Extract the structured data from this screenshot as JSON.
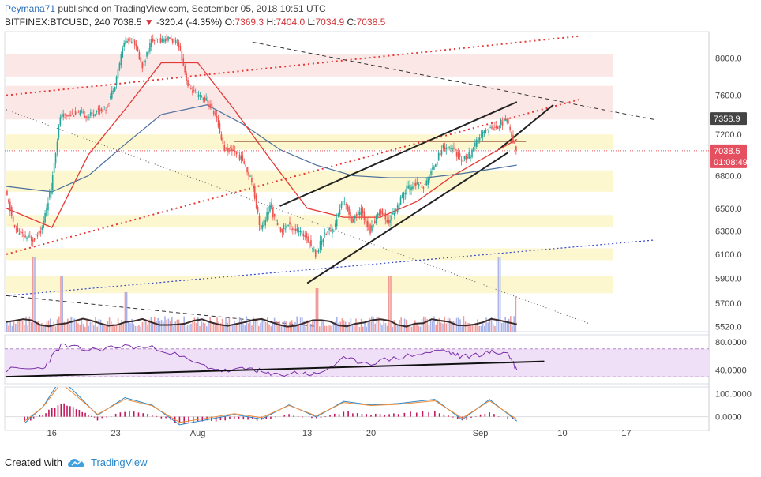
{
  "header": {
    "author": "Peymana71",
    "published": "published on TradingView.com, September 05, 2018 10:51 UTC",
    "symbol": "BITFINEX:BTCUSD, 240",
    "last": "7038.5",
    "down_arrow": "▼",
    "change": "-320.4 (-4.35%)",
    "ohlc_open_label": "O:",
    "ohlc_open": "7369.3",
    "ohlc_high_label": "H:",
    "ohlc_high": "7404.0",
    "ohlc_low_label": "L:",
    "ohlc_low": "7034.9",
    "ohlc_close_label": "C:",
    "ohlc_close": "7038.5"
  },
  "footer": {
    "created_with": "Created with",
    "brand": "TradingView",
    "logo_icon": "tradingview-cloud-icon"
  },
  "colors": {
    "candle_up": "#26a69a",
    "candle_down": "#ef5350",
    "ema_fast": "#e53935",
    "ema_slow": "#4a6f9c",
    "red_trendline": "#e53935",
    "blue_trendline": "#3345c9",
    "channel": "#222222",
    "rsi": "#7b2fa8",
    "macd_hist": "#c2185b",
    "price_tag_bg": "#e55060"
  },
  "chart_data": [
    {
      "type": "candlestick",
      "title": "BITFINEX:BTCUSD, 240",
      "x_tick_labels": [
        "16",
        "23",
        "Aug",
        "13",
        "20",
        "Sep",
        "10",
        "17"
      ],
      "y_tick_labels": [
        "8000.0",
        "7600.0",
        "7200.0",
        "6800.0",
        "6500.0",
        "6300.0",
        "6100.0",
        "5900.0",
        "5700.0",
        "5520.0"
      ],
      "y_log_scale": true,
      "ylim": [
        5480,
        8300
      ],
      "price_tags": {
        "high_tag": "7358.9",
        "last_price": "7038.5",
        "countdown": "01:08:49"
      },
      "close_path": [
        {
          "d": "Jul 11",
          "v": 6650
        },
        {
          "d": "Jul 12",
          "v": 6320
        },
        {
          "d": "Jul 13",
          "v": 6250
        },
        {
          "d": "Jul 14",
          "v": 6230
        },
        {
          "d": "Jul 15",
          "v": 6320
        },
        {
          "d": "Jul 16",
          "v": 6700
        },
        {
          "d": "Jul 17",
          "v": 7380
        },
        {
          "d": "Jul 18",
          "v": 7400
        },
        {
          "d": "Jul 19",
          "v": 7420
        },
        {
          "d": "Jul 20",
          "v": 7380
        },
        {
          "d": "Jul 21",
          "v": 7440
        },
        {
          "d": "Jul 22",
          "v": 7460
        },
        {
          "d": "Jul 23",
          "v": 7720
        },
        {
          "d": "Jul 24",
          "v": 8180
        },
        {
          "d": "Jul 25",
          "v": 8220
        },
        {
          "d": "Jul 26",
          "v": 7900
        },
        {
          "d": "Jul 27",
          "v": 8200
        },
        {
          "d": "Jul 28",
          "v": 8200
        },
        {
          "d": "Jul 29",
          "v": 8220
        },
        {
          "d": "Jul 30",
          "v": 8150
        },
        {
          "d": "Jul 31",
          "v": 7700
        },
        {
          "d": "Aug 1",
          "v": 7600
        },
        {
          "d": "Aug 2",
          "v": 7550
        },
        {
          "d": "Aug 3",
          "v": 7400
        },
        {
          "d": "Aug 4",
          "v": 7050
        },
        {
          "d": "Aug 5",
          "v": 7050
        },
        {
          "d": "Aug 6",
          "v": 6950
        },
        {
          "d": "Aug 7",
          "v": 6750
        },
        {
          "d": "Aug 8",
          "v": 6300
        },
        {
          "d": "Aug 9",
          "v": 6520
        },
        {
          "d": "Aug 10",
          "v": 6300
        },
        {
          "d": "Aug 11",
          "v": 6350
        },
        {
          "d": "Aug 12",
          "v": 6300
        },
        {
          "d": "Aug 13",
          "v": 6250
        },
        {
          "d": "Aug 14",
          "v": 6100
        },
        {
          "d": "Aug 15",
          "v": 6280
        },
        {
          "d": "Aug 16",
          "v": 6320
        },
        {
          "d": "Aug 17",
          "v": 6580
        },
        {
          "d": "Aug 18",
          "v": 6400
        },
        {
          "d": "Aug 19",
          "v": 6480
        },
        {
          "d": "Aug 20",
          "v": 6300
        },
        {
          "d": "Aug 21",
          "v": 6480
        },
        {
          "d": "Aug 22",
          "v": 6380
        },
        {
          "d": "Aug 23",
          "v": 6520
        },
        {
          "d": "Aug 24",
          "v": 6680
        },
        {
          "d": "Aug 25",
          "v": 6720
        },
        {
          "d": "Aug 26",
          "v": 6700
        },
        {
          "d": "Aug 27",
          "v": 6900
        },
        {
          "d": "Aug 28",
          "v": 7080
        },
        {
          "d": "Aug 29",
          "v": 7050
        },
        {
          "d": "Aug 30",
          "v": 6950
        },
        {
          "d": "Aug 31",
          "v": 7000
        },
        {
          "d": "Sep 1",
          "v": 7180
        },
        {
          "d": "Sep 2",
          "v": 7260
        },
        {
          "d": "Sep 3",
          "v": 7280
        },
        {
          "d": "Sep 4",
          "v": 7350
        },
        {
          "d": "Sep 5",
          "v": 7038.5
        }
      ],
      "ema_fast_path": [
        {
          "d": "Jul 11",
          "v": 6500
        },
        {
          "d": "Jul 16",
          "v": 6330
        },
        {
          "d": "Jul 20",
          "v": 7000
        },
        {
          "d": "Jul 24",
          "v": 7450
        },
        {
          "d": "Jul 28",
          "v": 7950
        },
        {
          "d": "Aug 1",
          "v": 7950
        },
        {
          "d": "Aug 5",
          "v": 7450
        },
        {
          "d": "Aug 9",
          "v": 6950
        },
        {
          "d": "Aug 13",
          "v": 6500
        },
        {
          "d": "Aug 17",
          "v": 6420
        },
        {
          "d": "Aug 21",
          "v": 6420
        },
        {
          "d": "Aug 25",
          "v": 6560
        },
        {
          "d": "Aug 29",
          "v": 6800
        },
        {
          "d": "Sep 2",
          "v": 7000
        },
        {
          "d": "Sep 5",
          "v": 7150
        }
      ],
      "ema_slow_path": [
        {
          "d": "Jul 11",
          "v": 6700
        },
        {
          "d": "Jul 16",
          "v": 6650
        },
        {
          "d": "Jul 20",
          "v": 6800
        },
        {
          "d": "Jul 24",
          "v": 7100
        },
        {
          "d": "Jul 28",
          "v": 7400
        },
        {
          "d": "Aug 2",
          "v": 7500
        },
        {
          "d": "Aug 6",
          "v": 7300
        },
        {
          "d": "Aug 10",
          "v": 7050
        },
        {
          "d": "Aug 14",
          "v": 6900
        },
        {
          "d": "Aug 18",
          "v": 6800
        },
        {
          "d": "Aug 22",
          "v": 6780
        },
        {
          "d": "Aug 26",
          "v": 6780
        },
        {
          "d": "Aug 30",
          "v": 6820
        },
        {
          "d": "Sep 5",
          "v": 6900
        }
      ],
      "support_resistance_zones": [
        {
          "from": 7800,
          "to": 8050
        },
        {
          "from": 7350,
          "to": 7700
        },
        {
          "from": 7050,
          "to": 7200
        },
        {
          "from": 6650,
          "to": 6850
        },
        {
          "from": 6330,
          "to": 6440
        },
        {
          "from": 6050,
          "to": 6150
        },
        {
          "from": 5780,
          "to": 5920
        }
      ],
      "trendlines": [
        {
          "kind": "red-dotted",
          "p1": {
            "d": "Jul 11",
            "v": 6100
          },
          "p2": {
            "d": "Sep 12",
            "v": 7560
          }
        },
        {
          "kind": "red-dotted",
          "p1": {
            "d": "Jul 11",
            "v": 7600
          },
          "p2": {
            "d": "Sep 12",
            "v": 8250
          }
        },
        {
          "kind": "blue-dotted",
          "p1": {
            "d": "Jul 11",
            "v": 5760
          },
          "p2": {
            "d": "Sep 20",
            "v": 6220
          }
        },
        {
          "kind": "black-dashed",
          "p1": {
            "d": "Aug 7",
            "v": 8180
          },
          "p2": {
            "d": "Sep 20",
            "v": 7350
          }
        },
        {
          "kind": "black-dashed",
          "p1": {
            "d": "Jul 11",
            "v": 5760
          },
          "p2": {
            "d": "Aug 14",
            "v": 5520
          }
        },
        {
          "kind": "black-dotted",
          "p1": {
            "d": "Jul 11",
            "v": 7450
          },
          "p2": {
            "d": "Sep 13",
            "v": 5540
          }
        },
        {
          "kind": "channel-upper",
          "p1": {
            "d": "Aug 10",
            "v": 6520
          },
          "p2": {
            "d": "Sep 5",
            "v": 7530
          }
        },
        {
          "kind": "channel-lower",
          "p1": {
            "d": "Aug 13",
            "v": 5860
          },
          "p2": {
            "d": "Sep 4",
            "v": 7020
          }
        },
        {
          "kind": "channel-extension",
          "p1": {
            "d": "Sep 3",
            "v": 7050
          },
          "p2": {
            "d": "Sep 9",
            "v": 7500
          }
        }
      ],
      "horizontal_levels": [
        {
          "kind": "resistance",
          "v": 7130,
          "from": "Aug 5",
          "to": "Sep 6"
        },
        {
          "kind": "last-price",
          "v": 7038.5
        }
      ]
    },
    {
      "type": "bar",
      "title": "Volume",
      "note": "per-candle volume bars with moving average",
      "spikes": [
        {
          "d": "Jul 14",
          "rel": 0.95
        },
        {
          "d": "Jul 17",
          "rel": 0.7
        },
        {
          "d": "Jul 24",
          "rel": 0.5
        },
        {
          "d": "Aug 14",
          "rel": 0.55
        },
        {
          "d": "Aug 22",
          "rel": 0.7
        },
        {
          "d": "Sep 3",
          "rel": 0.95
        },
        {
          "d": "Sep 5",
          "rel": 0.45
        }
      ]
    },
    {
      "type": "line",
      "title": "RSI",
      "y_tick_labels": [
        "80.0000",
        "40.0000"
      ],
      "band": [
        30,
        70
      ],
      "ylim": [
        20,
        90
      ],
      "series": [
        {
          "values": [
            {
              "d": "Jul 11",
              "v": 40
            },
            {
              "d": "Jul 15",
              "v": 42
            },
            {
              "d": "Jul 17",
              "v": 75
            },
            {
              "d": "Jul 20",
              "v": 68
            },
            {
              "d": "Jul 24",
              "v": 74
            },
            {
              "d": "Jul 28",
              "v": 70
            },
            {
              "d": "Aug 1",
              "v": 48
            },
            {
              "d": "Aug 4",
              "v": 38
            },
            {
              "d": "Aug 7",
              "v": 42
            },
            {
              "d": "Aug 9",
              "v": 32
            },
            {
              "d": "Aug 12",
              "v": 36
            },
            {
              "d": "Aug 14",
              "v": 33
            },
            {
              "d": "Aug 17",
              "v": 55
            },
            {
              "d": "Aug 20",
              "v": 50
            },
            {
              "d": "Aug 24",
              "v": 60
            },
            {
              "d": "Aug 28",
              "v": 68
            },
            {
              "d": "Aug 30",
              "v": 58
            },
            {
              "d": "Sep 2",
              "v": 65
            },
            {
              "d": "Sep 4",
              "v": 64
            },
            {
              "d": "Sep 5",
              "v": 40
            }
          ]
        }
      ],
      "trendline": {
        "p1": {
          "d": "Jul 11",
          "v": 30
        },
        "p2": {
          "d": "Sep 8",
          "v": 52
        }
      }
    },
    {
      "type": "line",
      "title": "MACD",
      "y_tick_labels": [
        "100.0000",
        "0.0000"
      ],
      "ylim": [
        -60,
        130
      ],
      "histogram": [
        {
          "d": "Jul 13",
          "v": -25
        },
        {
          "d": "Jul 15",
          "v": 10
        },
        {
          "d": "Jul 17",
          "v": 60
        },
        {
          "d": "Jul 19",
          "v": 30
        },
        {
          "d": "Jul 21",
          "v": -15
        },
        {
          "d": "Jul 24",
          "v": 25
        },
        {
          "d": "Jul 27",
          "v": 10
        },
        {
          "d": "Jul 30",
          "v": -30
        },
        {
          "d": "Aug 2",
          "v": -20
        },
        {
          "d": "Aug 5",
          "v": -10
        },
        {
          "d": "Aug 8",
          "v": -15
        },
        {
          "d": "Aug 11",
          "v": 10
        },
        {
          "d": "Aug 14",
          "v": -10
        },
        {
          "d": "Aug 17",
          "v": 20
        },
        {
          "d": "Aug 20",
          "v": 8
        },
        {
          "d": "Aug 23",
          "v": 15
        },
        {
          "d": "Aug 27",
          "v": 25
        },
        {
          "d": "Aug 30",
          "v": -20
        },
        {
          "d": "Sep 2",
          "v": 20
        },
        {
          "d": "Sep 5",
          "v": -20
        }
      ]
    }
  ]
}
